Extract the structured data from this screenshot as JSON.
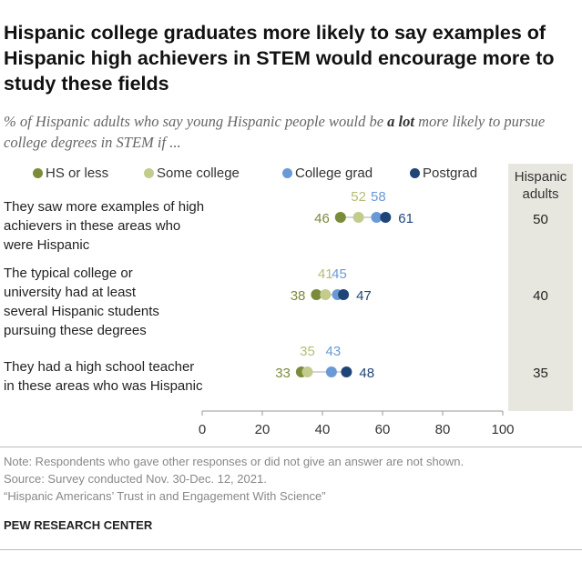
{
  "title": "Hispanic college graduates more likely to say examples of Hispanic high achievers in STEM would encourage more to study these fields",
  "subtitle_pre": "% of Hispanic adults who say young Hispanic people would be ",
  "subtitle_bold": "a lot",
  "subtitle_post": " more likely to pursue college degrees in STEM if ...",
  "legend": [
    {
      "label": "HS or less",
      "color": "#7a8b3a"
    },
    {
      "label": "Some college",
      "color": "#c3cc8c"
    },
    {
      "label": "College grad",
      "color": "#6a9ad6"
    },
    {
      "label": "Postgrad",
      "color": "#1f4577"
    }
  ],
  "side_header_line1": "Hispanic",
  "side_header_line2": "adults",
  "chart_data": {
    "type": "scatter",
    "xlim": [
      0,
      100
    ],
    "x_ticks": [
      "0",
      "20",
      "40",
      "60",
      "80",
      "100"
    ],
    "categories": [
      "They saw more examples of high achievers in these areas who were Hispanic",
      "The typical college or university had at least several Hispanic students pursuing these degrees",
      "They had a high school teacher in these areas who was Hispanic"
    ],
    "series": [
      {
        "name": "HS or less",
        "values": [
          46,
          38,
          33
        ]
      },
      {
        "name": "Some college",
        "values": [
          52,
          41,
          35
        ]
      },
      {
        "name": "College grad",
        "values": [
          58,
          45,
          43
        ]
      },
      {
        "name": "Postgrad",
        "values": [
          61,
          47,
          48
        ]
      }
    ],
    "hispanic_adults": [
      "50",
      "40",
      "35"
    ]
  },
  "row_labels": [
    [
      "They saw more examples of high",
      "achievers in these areas who",
      "were Hispanic"
    ],
    [
      "The typical college or",
      "university had at least",
      "several Hispanic students",
      "pursuing these degrees"
    ],
    [
      "They had a high school teacher",
      "in these areas who was Hispanic"
    ]
  ],
  "note": "Note: Respondents who gave other responses or did not give an answer are not shown.",
  "source": "Source: Survey conducted Nov. 30-Dec. 12, 2021.",
  "report": "“Hispanic Americans’ Trust in and Engagement With Science”",
  "org": "PEW RESEARCH CENTER"
}
